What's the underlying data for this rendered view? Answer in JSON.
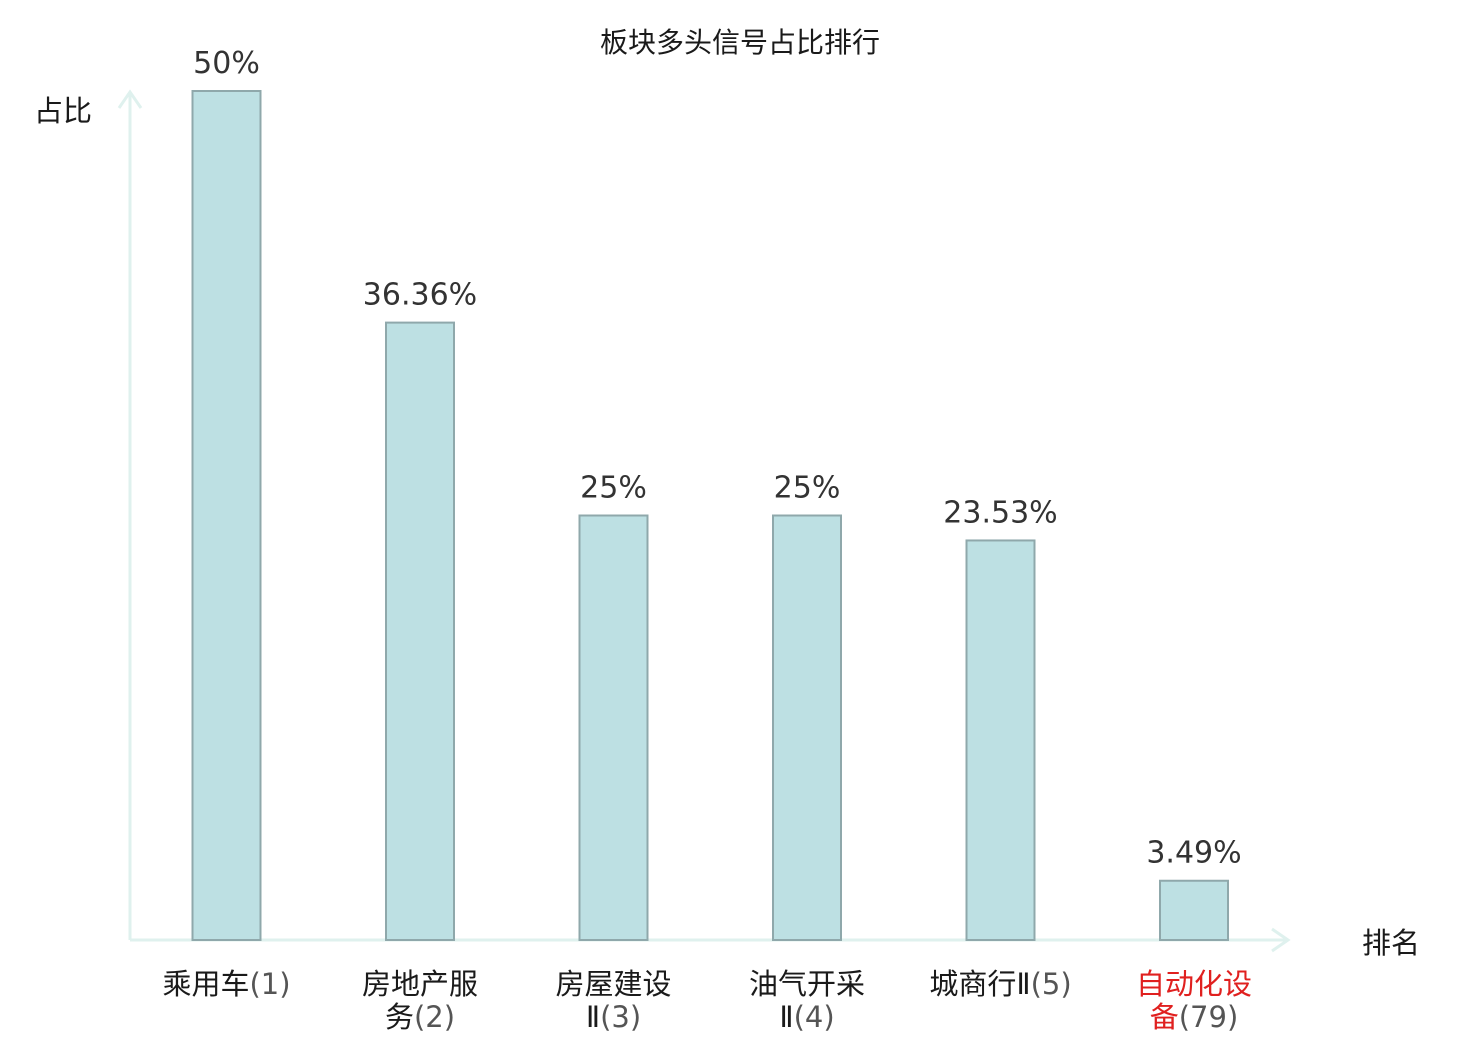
{
  "chart_data": {
    "type": "bar",
    "title": "板块多头信号占比排行",
    "ylabel": "占比",
    "xlabel": "排名",
    "ylim": [
      0,
      50
    ],
    "grid": false,
    "categories": [
      {
        "lines": [
          "乘用车(1)"
        ],
        "name_parts": [
          [
            "乘用车",
            "(1)"
          ]
        ]
      },
      {
        "lines": [
          "房地产服",
          "务(2)"
        ],
        "name_parts": [
          [
            "房地产服",
            ""
          ],
          [
            "务",
            "(2)"
          ]
        ]
      },
      {
        "lines": [
          "房屋建设",
          "Ⅱ(3)"
        ],
        "name_parts": [
          [
            "房屋建设",
            ""
          ],
          [
            "Ⅱ",
            "(3)"
          ]
        ]
      },
      {
        "lines": [
          "油气开采",
          "Ⅱ(4)"
        ],
        "name_parts": [
          [
            "油气开采",
            ""
          ],
          [
            "Ⅱ",
            "(4)"
          ]
        ]
      },
      {
        "lines": [
          "城商行Ⅱ(5)"
        ],
        "name_parts": [
          [
            "城商行Ⅱ",
            "(5)"
          ]
        ]
      },
      {
        "lines": [
          "自动化设",
          "备(79)"
        ],
        "name_parts": [
          [
            "自动化设",
            ""
          ],
          [
            "备",
            "(79)"
          ]
        ],
        "highlight": true
      }
    ],
    "values": [
      50,
      36.36,
      25,
      25,
      23.53,
      3.49
    ],
    "value_labels": [
      "50%",
      "36.36%",
      "25%",
      "25%",
      "23.53%",
      "3.49%"
    ],
    "colors": {
      "bar_fill": "#bde0e3",
      "bar_stroke": "#8fa8ab",
      "axis": "#dff1ee",
      "highlight": "#e0201f"
    }
  }
}
